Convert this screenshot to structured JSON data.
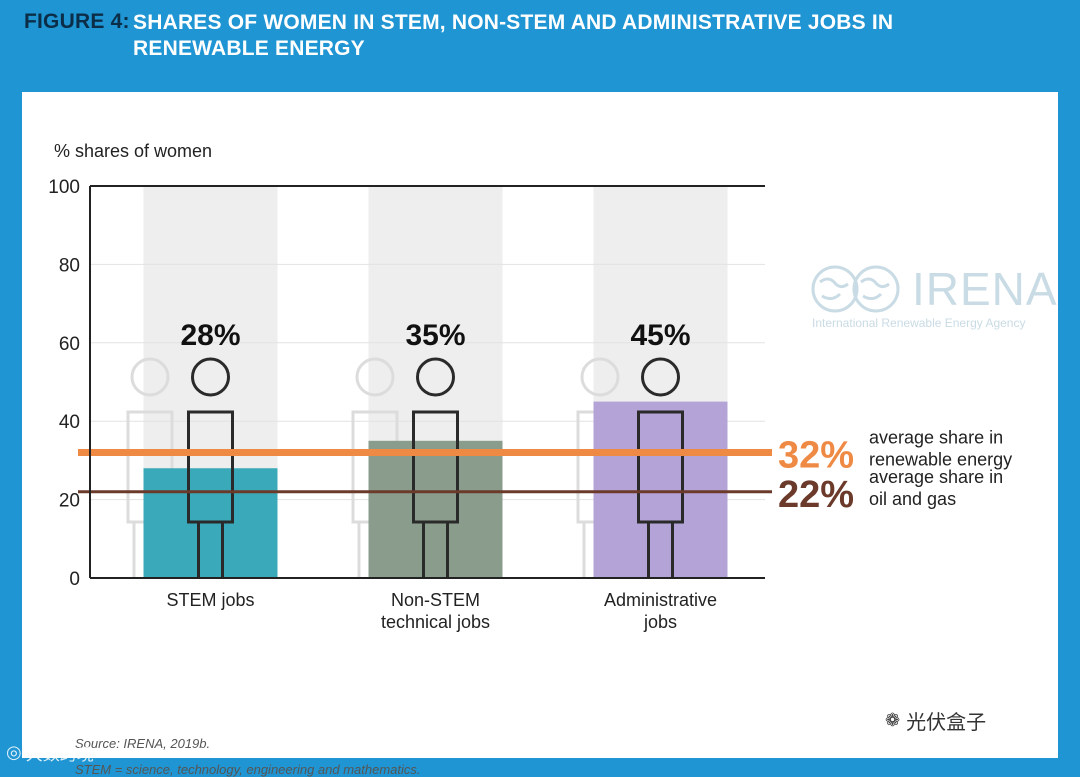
{
  "figure_label": "FIGURE 4:",
  "figure_title": "SHARES OF WOMEN IN STEM, NON-STEM AND ADMINISTRATIVE JOBS IN RENEWABLE ENERGY",
  "colors": {
    "header_bg": "#1f95d3",
    "stem_bar": "#3aa9b9",
    "nonstem_bar": "#8a9d8c",
    "admin_bar": "#b4a3d6",
    "renewable_line": "#ef8a45",
    "oilgas_line": "#6b3a2a"
  },
  "chart_data": {
    "type": "bar",
    "ylabel": "% shares of women",
    "ylim": [
      0,
      100
    ],
    "yticks": [
      "0",
      "20",
      "40",
      "60",
      "80",
      "100"
    ],
    "categories": [
      "STEM jobs",
      "Non-STEM technical jobs",
      "Administrative jobs"
    ],
    "category_lines": [
      [
        "STEM jobs"
      ],
      [
        "Non-STEM",
        "technical jobs"
      ],
      [
        "Administrative",
        "jobs"
      ]
    ],
    "values": [
      28,
      35,
      45
    ],
    "value_labels": [
      "28%",
      "35%",
      "45%"
    ],
    "reference_lines": [
      {
        "value": 32,
        "label": "32%",
        "text": [
          "average share in",
          "renewable energy"
        ]
      },
      {
        "value": 22,
        "label": "22%",
        "text": [
          "average share in",
          "oil and gas"
        ]
      }
    ]
  },
  "source_note": "Source: IRENA, 2019b.",
  "abbr_note": "STEM = science, technology, engineering and mathematics.",
  "logo": {
    "name": "IRENA",
    "subtitle": "International Renewable Energy Agency"
  },
  "watermarks": {
    "right": "光伏盒子",
    "left": "大数跨境"
  }
}
